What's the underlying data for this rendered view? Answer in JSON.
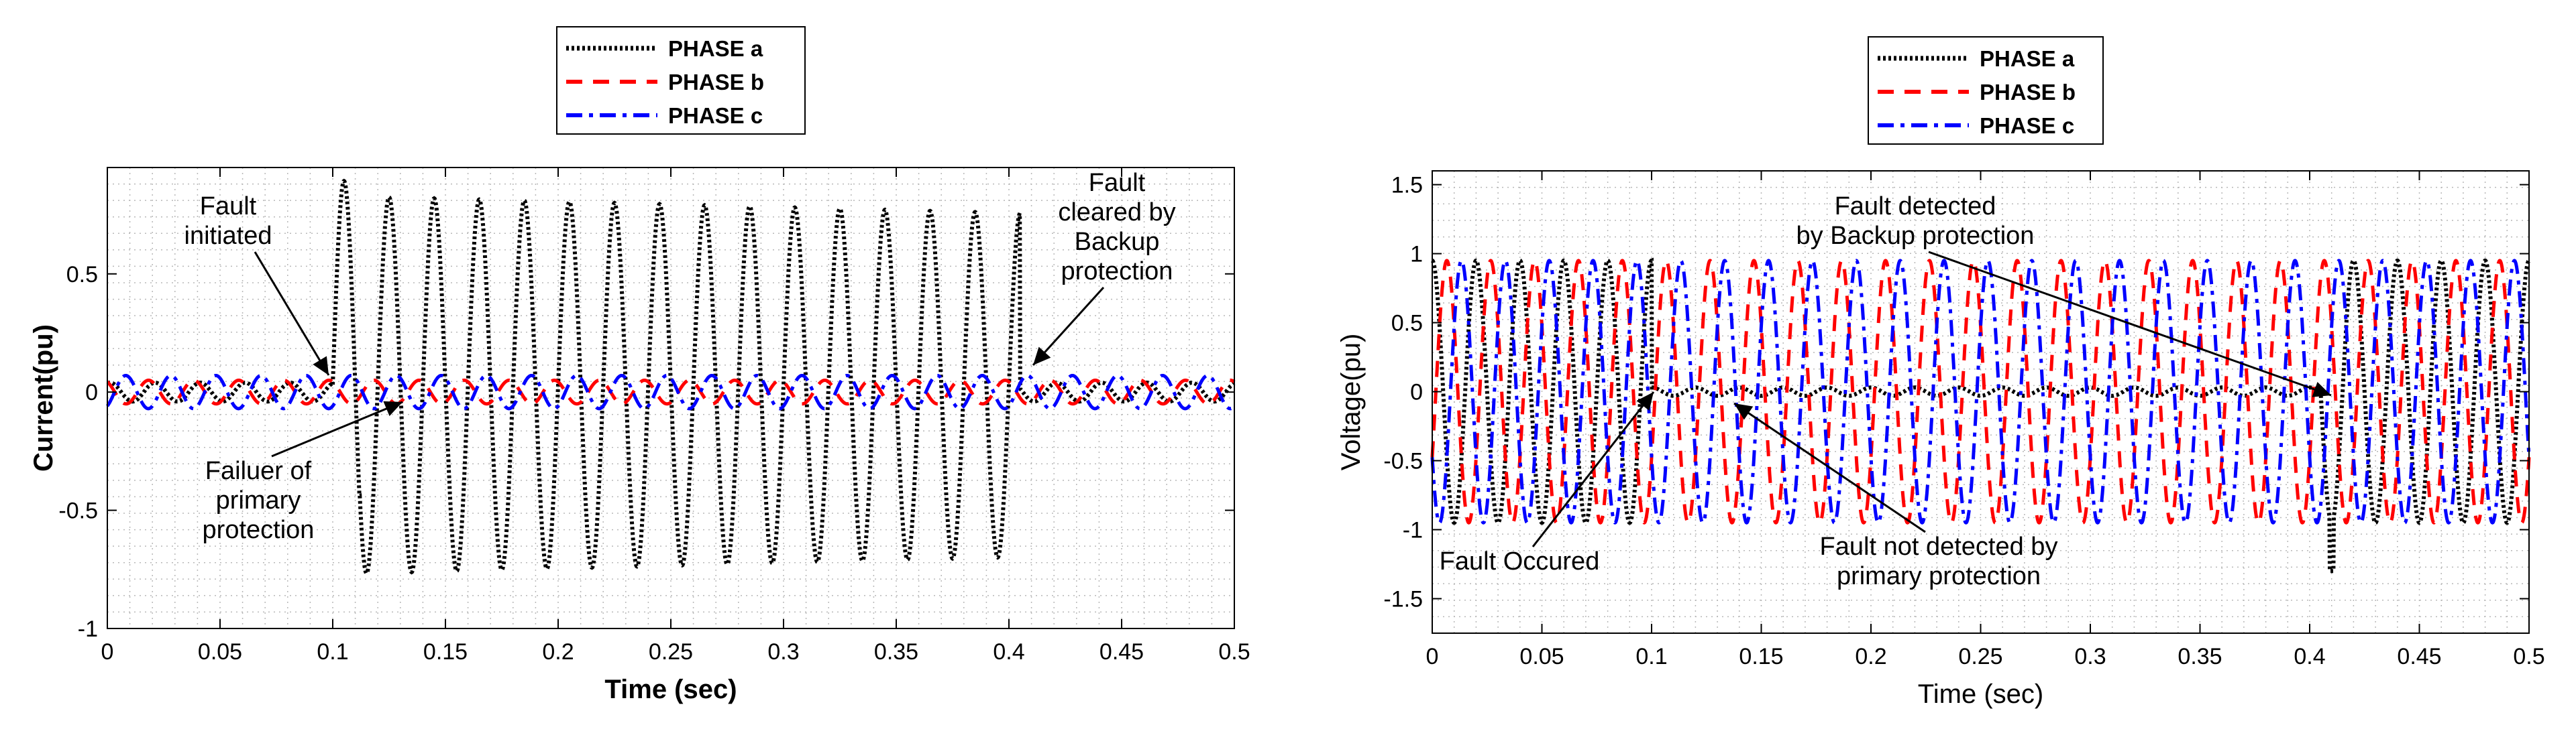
{
  "chart_data": [
    {
      "type": "line",
      "title": "",
      "xlabel": "Time (sec)",
      "ylabel": "Current(pu)",
      "xlim": [
        0,
        0.5
      ],
      "ylim": [
        -1,
        0.95
      ],
      "xticks": [
        "0",
        "0.05",
        "0.1",
        "0.15",
        "0.2",
        "0.25",
        "0.3",
        "0.35",
        "0.4",
        "0.45",
        "0.5"
      ],
      "yticks": [
        "0.5",
        "0",
        "-0.5",
        "-1"
      ],
      "ytick_values": [
        0.5,
        0,
        -0.5,
        -1
      ],
      "grid": true,
      "legend_position": "above-plot",
      "series": [
        {
          "name": "PHASE a",
          "color": "#000000",
          "style": "dotted",
          "points": [
            [
              0,
              0.02
            ],
            [
              0.1,
              0.02
            ],
            [
              0.105,
              0.88
            ],
            [
              0.11,
              0.85
            ],
            [
              0.13,
              -0.78
            ],
            [
              0.2,
              0.8
            ],
            [
              0.3,
              0.78
            ],
            [
              0.4,
              0.72
            ],
            [
              0.405,
              0.05
            ],
            [
              0.5,
              0.02
            ]
          ],
          "pre_fault_amplitude": 0.04,
          "fault_start": 0.1,
          "fault_end": 0.405,
          "fault_amplitude": 0.8
        },
        {
          "name": "PHASE b",
          "color": "#ff0000",
          "style": "dashed",
          "points": [
            [
              0,
              0.04
            ],
            [
              0.25,
              -0.04
            ],
            [
              0.5,
              0.04
            ]
          ],
          "amplitude": 0.05
        },
        {
          "name": "PHASE c",
          "color": "#0000ff",
          "style": "dashdot",
          "points": [
            [
              0,
              -0.06
            ],
            [
              0.25,
              0.06
            ],
            [
              0.5,
              -0.06
            ]
          ],
          "amplitude": 0.07
        }
      ],
      "annotations": [
        {
          "text_lines": [
            "Fault",
            "initiated"
          ],
          "x": 0.1,
          "y": 0.02
        },
        {
          "text_lines": [
            "Failuer of",
            "primary",
            "protection"
          ],
          "x": 0.135,
          "y": -0.02
        },
        {
          "text_lines": [
            "Fault",
            "cleared by",
            "Backup",
            "protection"
          ],
          "x": 0.405,
          "y": 0.05
        }
      ]
    },
    {
      "type": "line",
      "title": "",
      "xlabel": "Time (sec)",
      "ylabel": "Voltage(pu)",
      "xlim": [
        0,
        0.5
      ],
      "ylim": [
        -1.75,
        1.6
      ],
      "xticks": [
        "0",
        "0.05",
        "0.1",
        "0.15",
        "0.2",
        "0.25",
        "0.3",
        "0.35",
        "0.4",
        "0.45",
        "0.5"
      ],
      "yticks": [
        "1.5",
        "1",
        "0.5",
        "0",
        "-0.5",
        "-1",
        "-1.5"
      ],
      "ytick_values": [
        1.5,
        1,
        0.5,
        0,
        -0.5,
        -1,
        -1.5
      ],
      "grid": true,
      "legend_position": "above-plot",
      "series": [
        {
          "name": "PHASE a",
          "color": "#000000",
          "style": "dotted",
          "points": [
            [
              0,
              1.0
            ],
            [
              0.1,
              0.0
            ],
            [
              0.405,
              0.0
            ],
            [
              0.41,
              -1.3
            ],
            [
              0.42,
              1.05
            ],
            [
              0.5,
              0.95
            ]
          ],
          "amplitude": 0.95,
          "collapse_start": 0.1,
          "collapse_end": 0.405
        },
        {
          "name": "PHASE b",
          "color": "#ff0000",
          "style": "dashed",
          "points": [
            [
              0,
              0.9
            ],
            [
              0.25,
              -0.95
            ],
            [
              0.5,
              0.95
            ]
          ],
          "amplitude": 0.95
        },
        {
          "name": "PHASE c",
          "color": "#0000ff",
          "style": "dashdot",
          "points": [
            [
              0,
              -0.9
            ],
            [
              0.25,
              0.95
            ],
            [
              0.5,
              1.0
            ]
          ],
          "amplitude": 0.95
        }
      ],
      "annotations": [
        {
          "text_lines": [
            "Fault detected",
            "by Backup protection"
          ],
          "x": 0.405,
          "y": 0.0
        },
        {
          "text_lines": [
            "Fault Occured"
          ],
          "x": 0.1,
          "y": 0.0
        },
        {
          "text_lines": [
            "Fault not detected by",
            "primary protection"
          ],
          "x": 0.13,
          "y": 0.0
        }
      ]
    }
  ]
}
